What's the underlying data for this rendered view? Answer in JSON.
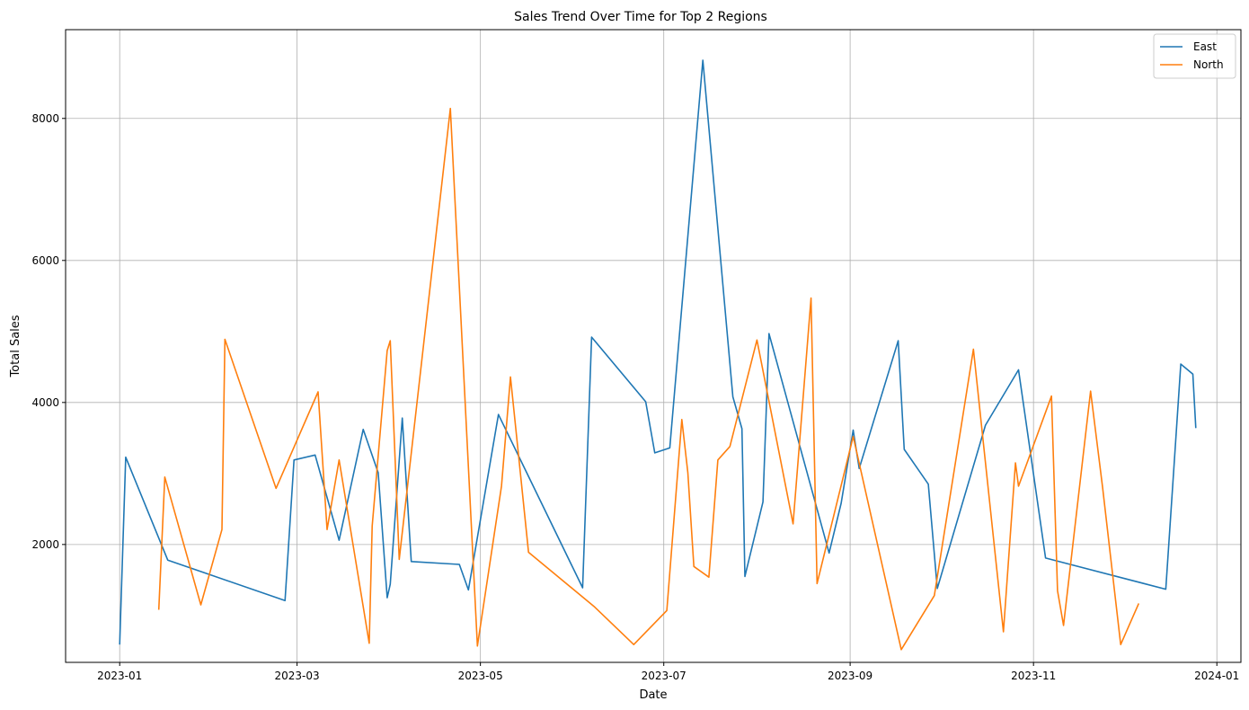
{
  "chart_data": {
    "type": "line",
    "title": "Sales Trend Over Time for Top 2 Regions",
    "xlabel": "Date",
    "ylabel": "Total Sales",
    "xlim": [
      "2022-12-14",
      "2024-01-09"
    ],
    "ylim": [
      340,
      9250
    ],
    "x_ticks": [
      "2023-01",
      "2023-03",
      "2023-05",
      "2023-07",
      "2023-09",
      "2023-11",
      "2024-01"
    ],
    "y_ticks": [
      2000,
      4000,
      6000,
      8000
    ],
    "grid": true,
    "legend_position": "top-right",
    "series": [
      {
        "name": "East",
        "color": "#1f77b4",
        "points": [
          [
            "2023-01-01",
            590
          ],
          [
            "2023-01-03",
            3230
          ],
          [
            "2023-01-17",
            1780
          ],
          [
            "2023-02-25",
            1210
          ],
          [
            "2023-02-28",
            3190
          ],
          [
            "2023-03-07",
            3260
          ],
          [
            "2023-03-15",
            2060
          ],
          [
            "2023-03-23",
            3620
          ],
          [
            "2023-03-28",
            3010
          ],
          [
            "2023-03-31",
            1250
          ],
          [
            "2023-04-01",
            1440
          ],
          [
            "2023-04-05",
            3780
          ],
          [
            "2023-04-08",
            1760
          ],
          [
            "2023-04-24",
            1720
          ],
          [
            "2023-04-27",
            1360
          ],
          [
            "2023-05-07",
            3830
          ],
          [
            "2023-06-04",
            1390
          ],
          [
            "2023-06-07",
            4920
          ],
          [
            "2023-06-25",
            4010
          ],
          [
            "2023-06-28",
            3290
          ],
          [
            "2023-07-03",
            3360
          ],
          [
            "2023-07-14",
            8820
          ],
          [
            "2023-07-24",
            4080
          ],
          [
            "2023-07-27",
            3630
          ],
          [
            "2023-07-28",
            1550
          ],
          [
            "2023-08-03",
            2600
          ],
          [
            "2023-08-05",
            4970
          ],
          [
            "2023-08-25",
            1880
          ],
          [
            "2023-08-29",
            2580
          ],
          [
            "2023-09-02",
            3610
          ],
          [
            "2023-09-04",
            3070
          ],
          [
            "2023-09-17",
            4870
          ],
          [
            "2023-09-19",
            3340
          ],
          [
            "2023-09-27",
            2850
          ],
          [
            "2023-09-30",
            1380
          ],
          [
            "2023-10-16",
            3680
          ],
          [
            "2023-10-27",
            4460
          ],
          [
            "2023-11-05",
            1810
          ],
          [
            "2023-12-15",
            1370
          ],
          [
            "2023-12-20",
            4540
          ],
          [
            "2023-12-24",
            4400
          ],
          [
            "2023-12-25",
            3640
          ]
        ]
      },
      {
        "name": "North",
        "color": "#ff7f0e",
        "points": [
          [
            "2023-01-14",
            1080
          ],
          [
            "2023-01-16",
            2950
          ],
          [
            "2023-01-28",
            1150
          ],
          [
            "2023-02-04",
            2210
          ],
          [
            "2023-02-05",
            4890
          ],
          [
            "2023-02-22",
            2790
          ],
          [
            "2023-03-08",
            4150
          ],
          [
            "2023-03-11",
            2210
          ],
          [
            "2023-03-15",
            3190
          ],
          [
            "2023-03-25",
            610
          ],
          [
            "2023-03-26",
            2260
          ],
          [
            "2023-03-31",
            4730
          ],
          [
            "2023-04-01",
            4870
          ],
          [
            "2023-04-04",
            1790
          ],
          [
            "2023-04-21",
            8140
          ],
          [
            "2023-04-30",
            570
          ],
          [
            "2023-05-08",
            2820
          ],
          [
            "2023-05-11",
            4360
          ],
          [
            "2023-05-17",
            1890
          ],
          [
            "2023-06-08",
            1120
          ],
          [
            "2023-06-21",
            590
          ],
          [
            "2023-07-02",
            1070
          ],
          [
            "2023-07-07",
            3760
          ],
          [
            "2023-07-09",
            3010
          ],
          [
            "2023-07-11",
            1690
          ],
          [
            "2023-07-16",
            1540
          ],
          [
            "2023-07-19",
            3190
          ],
          [
            "2023-07-23",
            3380
          ],
          [
            "2023-08-01",
            4880
          ],
          [
            "2023-08-13",
            2290
          ],
          [
            "2023-08-19",
            5470
          ],
          [
            "2023-08-21",
            1450
          ],
          [
            "2023-09-02",
            3520
          ],
          [
            "2023-09-18",
            520
          ],
          [
            "2023-09-29",
            1280
          ],
          [
            "2023-10-12",
            4750
          ],
          [
            "2023-10-22",
            770
          ],
          [
            "2023-10-26",
            3150
          ],
          [
            "2023-10-27",
            2820
          ],
          [
            "2023-11-07",
            4090
          ],
          [
            "2023-11-09",
            1350
          ],
          [
            "2023-11-11",
            860
          ],
          [
            "2023-11-20",
            4160
          ],
          [
            "2023-11-24",
            2800
          ],
          [
            "2023-11-30",
            590
          ],
          [
            "2023-12-06",
            1170
          ]
        ]
      }
    ]
  }
}
